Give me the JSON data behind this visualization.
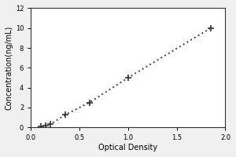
{
  "x_data": [
    0.1,
    0.151,
    0.202,
    0.35,
    0.602,
    1.0,
    1.85
  ],
  "y_data": [
    0.078,
    0.156,
    0.313,
    1.25,
    2.5,
    5.0,
    10.0
  ],
  "xlabel": "Optical Density",
  "ylabel": "Concentration(ng/mL)",
  "xlim": [
    0,
    2.0
  ],
  "ylim": [
    0,
    12
  ],
  "xticks": [
    0,
    0.5,
    1.0,
    1.5,
    2.0
  ],
  "yticks": [
    0,
    2,
    4,
    6,
    8,
    10,
    12
  ],
  "line_color": "#555555",
  "marker_color": "#333333",
  "marker": "+",
  "marker_size": 6,
  "line_style": ":",
  "line_width": 1.5,
  "tick_fontsize": 6,
  "label_fontsize": 7,
  "bg_color": "#f0f0f0"
}
